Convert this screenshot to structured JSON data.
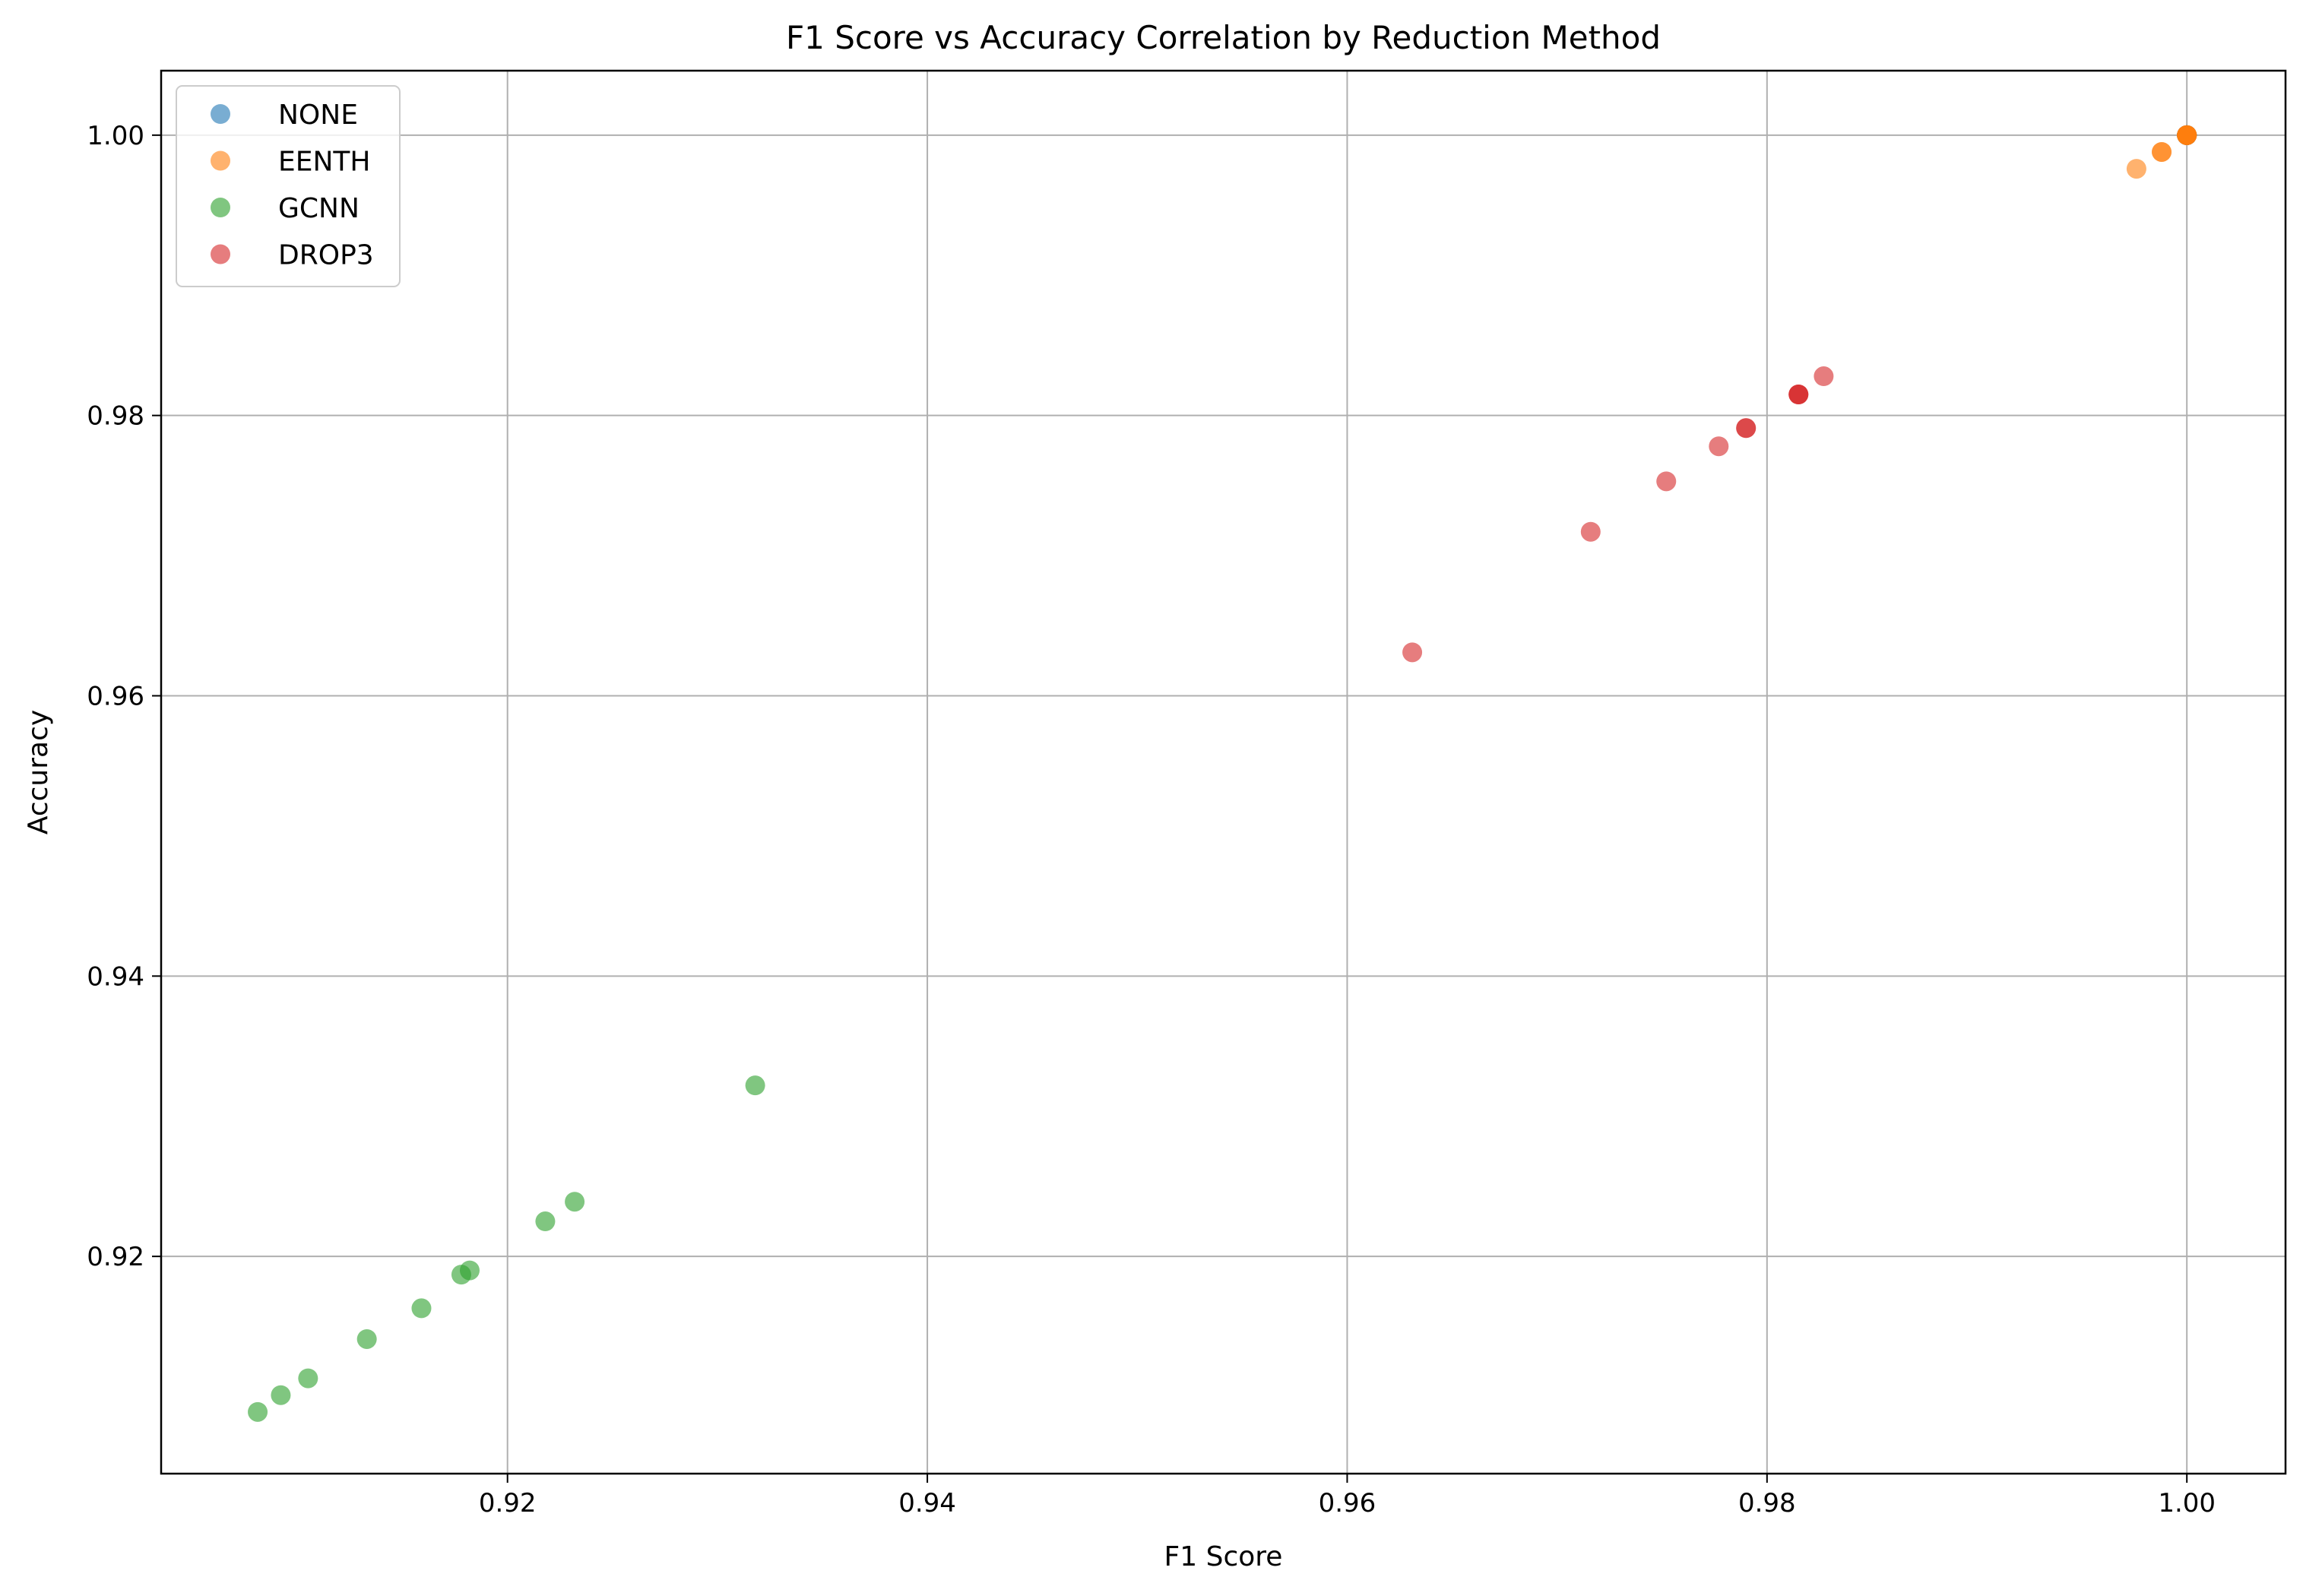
{
  "chart_data": {
    "type": "scatter",
    "title": "F1 Score vs Accuracy Correlation by Reduction Method",
    "xlabel": "F1 Score",
    "ylabel": "Accuracy",
    "xlim": [
      0.9035,
      1.0047
    ],
    "ylim": [
      0.9045,
      1.0046
    ],
    "xticks": [
      0.92,
      0.94,
      0.96,
      0.98,
      1.0
    ],
    "xtick_labels": [
      "0.92",
      "0.94",
      "0.96",
      "0.98",
      "1.00"
    ],
    "yticks": [
      0.92,
      0.94,
      0.96,
      0.98,
      1.0
    ],
    "ytick_labels": [
      "0.92",
      "0.94",
      "0.96",
      "0.98",
      "1.00"
    ],
    "grid": true,
    "legend_position": "top-left",
    "series": [
      {
        "name": "NONE",
        "color": "#1f77b4",
        "points": [
          [
            1.0,
            1.0
          ],
          [
            1.0,
            1.0
          ],
          [
            1.0,
            1.0
          ],
          [
            1.0,
            1.0
          ],
          [
            1.0,
            1.0
          ],
          [
            1.0,
            1.0
          ],
          [
            1.0,
            1.0
          ],
          [
            1.0,
            1.0
          ],
          [
            1.0,
            1.0
          ],
          [
            1.0,
            1.0
          ]
        ]
      },
      {
        "name": "EENTH",
        "color": "#ff7f0e",
        "points": [
          [
            1.0,
            1.0
          ],
          [
            1.0,
            1.0
          ],
          [
            1.0,
            1.0
          ],
          [
            1.0,
            1.0
          ],
          [
            1.0,
            1.0
          ],
          [
            1.0,
            1.0
          ],
          [
            0.9988,
            0.9988
          ],
          [
            0.9988,
            0.9988
          ],
          [
            0.9976,
            0.9976
          ]
        ]
      },
      {
        "name": "GCNN",
        "color": "#2ca02c",
        "points": [
          [
            0.9318,
            0.9322
          ],
          [
            0.9232,
            0.9239
          ],
          [
            0.9218,
            0.9225
          ],
          [
            0.9182,
            0.919
          ],
          [
            0.9178,
            0.9187
          ],
          [
            0.9159,
            0.9163
          ],
          [
            0.9133,
            0.9141
          ],
          [
            0.9105,
            0.9113
          ],
          [
            0.9092,
            0.9101
          ],
          [
            0.9081,
            0.9089
          ]
        ]
      },
      {
        "name": "DROP3",
        "color": "#d62728",
        "points": [
          [
            0.9827,
            0.9828
          ],
          [
            0.9815,
            0.9815
          ],
          [
            0.9815,
            0.9815
          ],
          [
            0.9815,
            0.9815
          ],
          [
            0.979,
            0.9791
          ],
          [
            0.979,
            0.9791
          ],
          [
            0.9777,
            0.9778
          ],
          [
            0.9752,
            0.9753
          ],
          [
            0.9716,
            0.9717
          ],
          [
            0.9631,
            0.9631
          ]
        ]
      }
    ]
  }
}
